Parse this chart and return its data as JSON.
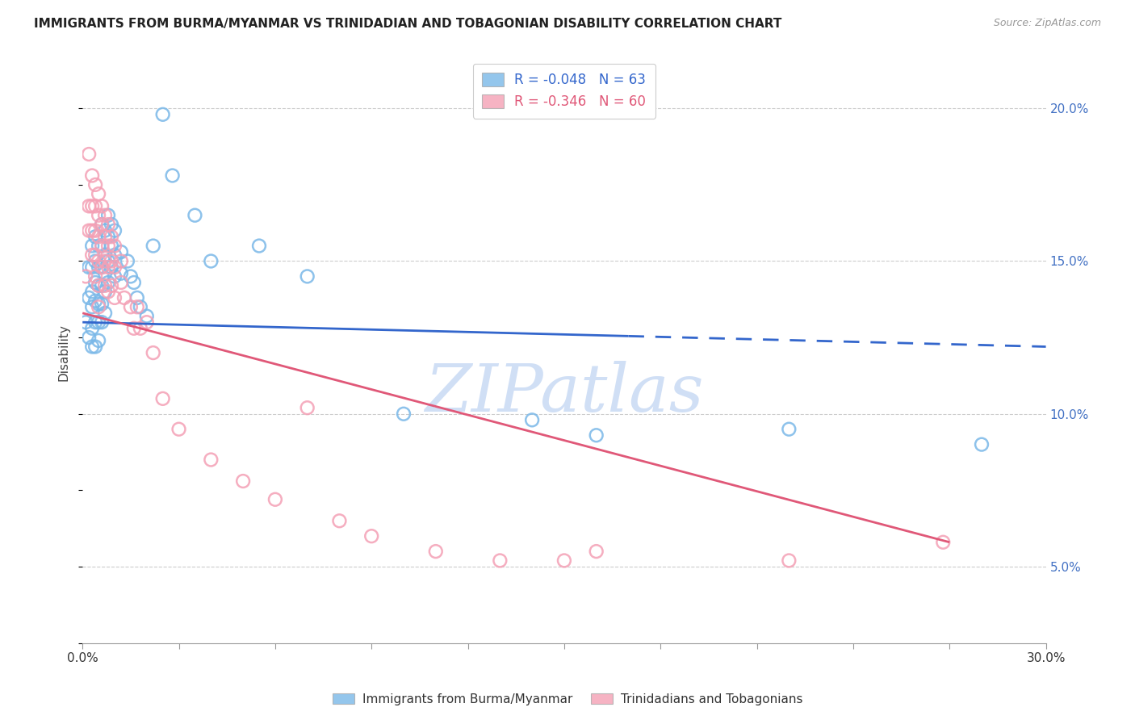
{
  "title": "IMMIGRANTS FROM BURMA/MYANMAR VS TRINIDADIAN AND TOBAGONIAN DISABILITY CORRELATION CHART",
  "source": "Source: ZipAtlas.com",
  "ylabel": "Disability",
  "x_min": 0.0,
  "x_max": 0.3,
  "y_min": 0.025,
  "y_max": 0.215,
  "x_ticks": [
    0.0,
    0.03,
    0.06,
    0.09,
    0.12,
    0.15,
    0.18,
    0.21,
    0.24,
    0.27,
    0.3
  ],
  "y_ticks": [
    0.05,
    0.1,
    0.15,
    0.2
  ],
  "y_tick_labels": [
    "5.0%",
    "10.0%",
    "15.0%",
    "20.0%"
  ],
  "blue_R": -0.048,
  "blue_N": 63,
  "pink_R": -0.346,
  "pink_N": 60,
  "blue_color": "#7ab8e8",
  "pink_color": "#f4a0b5",
  "blue_line_color": "#3366cc",
  "pink_line_color": "#e05878",
  "blue_line_solid_end": 0.17,
  "blue_line_x0": 0.0,
  "blue_line_y0": 0.13,
  "blue_line_x1": 0.3,
  "blue_line_y1": 0.122,
  "pink_line_x0": 0.0,
  "pink_line_y0": 0.133,
  "pink_line_x1": 0.27,
  "pink_line_y1": 0.058,
  "blue_scatter": [
    [
      0.001,
      0.13
    ],
    [
      0.002,
      0.148
    ],
    [
      0.002,
      0.138
    ],
    [
      0.002,
      0.125
    ],
    [
      0.003,
      0.155
    ],
    [
      0.003,
      0.148
    ],
    [
      0.003,
      0.14
    ],
    [
      0.003,
      0.135
    ],
    [
      0.003,
      0.128
    ],
    [
      0.003,
      0.122
    ],
    [
      0.004,
      0.158
    ],
    [
      0.004,
      0.15
    ],
    [
      0.004,
      0.143
    ],
    [
      0.004,
      0.137
    ],
    [
      0.004,
      0.13
    ],
    [
      0.004,
      0.122
    ],
    [
      0.005,
      0.155
    ],
    [
      0.005,
      0.148
    ],
    [
      0.005,
      0.142
    ],
    [
      0.005,
      0.136
    ],
    [
      0.005,
      0.13
    ],
    [
      0.005,
      0.124
    ],
    [
      0.006,
      0.162
    ],
    [
      0.006,
      0.155
    ],
    [
      0.006,
      0.148
    ],
    [
      0.006,
      0.142
    ],
    [
      0.006,
      0.136
    ],
    [
      0.006,
      0.13
    ],
    [
      0.007,
      0.16
    ],
    [
      0.007,
      0.152
    ],
    [
      0.007,
      0.146
    ],
    [
      0.007,
      0.14
    ],
    [
      0.007,
      0.133
    ],
    [
      0.008,
      0.165
    ],
    [
      0.008,
      0.158
    ],
    [
      0.008,
      0.15
    ],
    [
      0.008,
      0.143
    ],
    [
      0.009,
      0.162
    ],
    [
      0.009,
      0.155
    ],
    [
      0.009,
      0.148
    ],
    [
      0.01,
      0.16
    ],
    [
      0.01,
      0.152
    ],
    [
      0.01,
      0.145
    ],
    [
      0.012,
      0.153
    ],
    [
      0.012,
      0.146
    ],
    [
      0.014,
      0.15
    ],
    [
      0.015,
      0.145
    ],
    [
      0.016,
      0.143
    ],
    [
      0.017,
      0.138
    ],
    [
      0.018,
      0.135
    ],
    [
      0.02,
      0.132
    ],
    [
      0.022,
      0.155
    ],
    [
      0.025,
      0.198
    ],
    [
      0.028,
      0.178
    ],
    [
      0.035,
      0.165
    ],
    [
      0.04,
      0.15
    ],
    [
      0.055,
      0.155
    ],
    [
      0.07,
      0.145
    ],
    [
      0.1,
      0.1
    ],
    [
      0.14,
      0.098
    ],
    [
      0.16,
      0.093
    ],
    [
      0.22,
      0.095
    ],
    [
      0.28,
      0.09
    ]
  ],
  "pink_scatter": [
    [
      0.001,
      0.145
    ],
    [
      0.002,
      0.185
    ],
    [
      0.002,
      0.168
    ],
    [
      0.002,
      0.16
    ],
    [
      0.003,
      0.178
    ],
    [
      0.003,
      0.168
    ],
    [
      0.003,
      0.16
    ],
    [
      0.003,
      0.152
    ],
    [
      0.004,
      0.175
    ],
    [
      0.004,
      0.168
    ],
    [
      0.004,
      0.16
    ],
    [
      0.004,
      0.152
    ],
    [
      0.004,
      0.145
    ],
    [
      0.005,
      0.172
    ],
    [
      0.005,
      0.165
    ],
    [
      0.005,
      0.158
    ],
    [
      0.005,
      0.15
    ],
    [
      0.005,
      0.142
    ],
    [
      0.005,
      0.135
    ],
    [
      0.006,
      0.168
    ],
    [
      0.006,
      0.162
    ],
    [
      0.006,
      0.155
    ],
    [
      0.006,
      0.148
    ],
    [
      0.007,
      0.165
    ],
    [
      0.007,
      0.158
    ],
    [
      0.007,
      0.15
    ],
    [
      0.007,
      0.142
    ],
    [
      0.008,
      0.162
    ],
    [
      0.008,
      0.155
    ],
    [
      0.008,
      0.148
    ],
    [
      0.008,
      0.14
    ],
    [
      0.009,
      0.158
    ],
    [
      0.009,
      0.15
    ],
    [
      0.009,
      0.142
    ],
    [
      0.01,
      0.155
    ],
    [
      0.01,
      0.148
    ],
    [
      0.01,
      0.138
    ],
    [
      0.012,
      0.15
    ],
    [
      0.012,
      0.143
    ],
    [
      0.013,
      0.138
    ],
    [
      0.015,
      0.135
    ],
    [
      0.016,
      0.128
    ],
    [
      0.017,
      0.135
    ],
    [
      0.018,
      0.128
    ],
    [
      0.02,
      0.13
    ],
    [
      0.022,
      0.12
    ],
    [
      0.025,
      0.105
    ],
    [
      0.03,
      0.095
    ],
    [
      0.04,
      0.085
    ],
    [
      0.05,
      0.078
    ],
    [
      0.06,
      0.072
    ],
    [
      0.07,
      0.102
    ],
    [
      0.08,
      0.065
    ],
    [
      0.09,
      0.06
    ],
    [
      0.11,
      0.055
    ],
    [
      0.13,
      0.052
    ],
    [
      0.15,
      0.052
    ],
    [
      0.16,
      0.055
    ],
    [
      0.22,
      0.052
    ],
    [
      0.268,
      0.058
    ]
  ],
  "watermark": "ZIPatlas",
  "watermark_color": "#d0dff5",
  "background_color": "#ffffff",
  "grid_color": "#cccccc"
}
